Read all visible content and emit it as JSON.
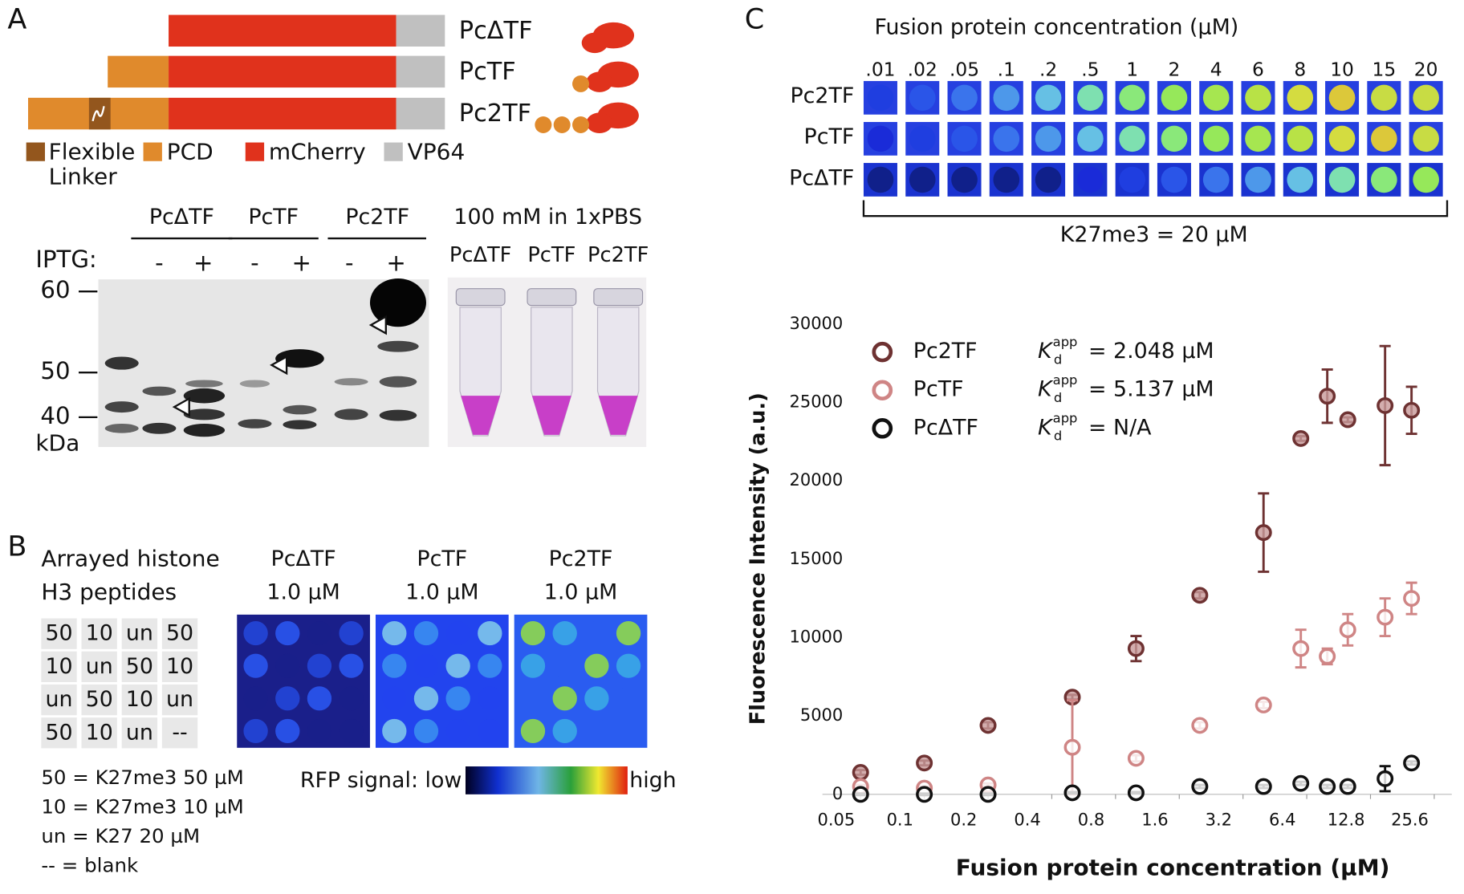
{
  "panel_a": {
    "label": "A",
    "constructs": [
      "PcΔTF",
      "PcTF",
      "Pc2TF"
    ],
    "legend": [
      {
        "lines": [
          "Flexible",
          "Linker"
        ],
        "color": "#93561d"
      },
      {
        "lines": [
          "PCD"
        ],
        "color": "#e08a2c"
      },
      {
        "lines": [
          "mCherry"
        ],
        "color": "#e0321c"
      },
      {
        "lines": [
          "VP64"
        ],
        "color": "#c0c0c0"
      }
    ],
    "gel": {
      "headers": [
        "PcΔTF",
        "PcTF",
        "Pc2TF"
      ],
      "iptg": "IPTG:",
      "signs": [
        "-",
        "+",
        "-",
        "+",
        "-",
        "+"
      ],
      "markers": [
        "60",
        "50",
        "40"
      ],
      "unit": "kDa"
    },
    "tubes": {
      "title": "100 mM in 1xPBS",
      "labels": [
        "PcΔTF",
        "PcTF",
        "Pc2TF"
      ]
    }
  },
  "panel_b": {
    "label": "B",
    "title_lines": [
      "Arrayed histone",
      "H3 peptides"
    ],
    "grid": [
      [
        "50",
        "10",
        "un",
        "50"
      ],
      [
        "10",
        "un",
        "50",
        "10"
      ],
      [
        "un",
        "50",
        "10",
        "un"
      ],
      [
        "50",
        "10",
        "un",
        "--"
      ]
    ],
    "key": [
      "50 = K27me3 50 µM",
      "10 = K27me3 10 µM",
      "un = K27 20 µM",
      "--   = blank"
    ],
    "images": [
      {
        "name": "PcΔTF",
        "conc": "1.0 µM"
      },
      {
        "name": "PcTF",
        "conc": "1.0 µM"
      },
      {
        "name": "Pc2TF",
        "conc": "1.0 µM"
      }
    ],
    "colorbar": {
      "low": "RFP signal: low",
      "high": "high"
    }
  },
  "panel_c": {
    "label": "C",
    "array_title": "Fusion protein concentration (µM)",
    "columns": [
      ".01",
      ".02",
      ".05",
      ".1",
      ".2",
      ".5",
      "1",
      "2",
      "4",
      "6",
      "8",
      "10",
      "15",
      "20"
    ],
    "rows": [
      "Pc2TF",
      "PcTF",
      "PcΔTF"
    ],
    "bracket_label": "K27me3 = 20 µM"
  },
  "chart_data": {
    "type": "scatter",
    "x_label": "Fusion protein concentration (µM)",
    "y_label": "Fluorescence Intensity (a.u.)",
    "x": [
      0.05,
      0.1,
      0.2,
      0.5,
      1,
      2,
      4,
      6,
      8,
      10,
      15,
      20
    ],
    "x_scale": "log2",
    "xlim": [
      0.033,
      31
    ],
    "xticks": [
      0.05,
      0.1,
      0.2,
      0.4,
      0.8,
      1.6,
      3.2,
      6.4,
      12.8,
      25.6
    ],
    "ylim": [
      0,
      30000
    ],
    "yticks": [
      0,
      5000,
      10000,
      15000,
      20000,
      25000,
      30000
    ],
    "kd_symbol": "K",
    "kd_sub": "d",
    "kd_sup": "app",
    "legend_position": "upper-left",
    "series": [
      {
        "name": "Pc2TF",
        "color": "#6e3232",
        "fill": "#c89a9a",
        "kd": "= 2.048 µM",
        "values": [
          1400,
          2000,
          4400,
          6200,
          9300,
          12700,
          16700,
          22700,
          25400,
          23900,
          24800,
          24500
        ],
        "errors": [
          150,
          150,
          200,
          150,
          800,
          200,
          2500,
          150,
          1700,
          150,
          3800,
          1500
        ]
      },
      {
        "name": "PcTF",
        "color": "#cf8585",
        "fill": "#ffffff",
        "kd": "= 5.137 µM",
        "values": [
          500,
          400,
          600,
          3000,
          2300,
          4400,
          5700,
          9300,
          8800,
          10500,
          11300,
          12500
        ],
        "errors": [
          100,
          100,
          100,
          3000,
          200,
          200,
          200,
          1200,
          500,
          1000,
          1200,
          1000
        ]
      },
      {
        "name": "PcΔTF",
        "color": "#111111",
        "fill": "#ffffff",
        "kd": "= N/A",
        "values": [
          0,
          0,
          0,
          100,
          100,
          500,
          500,
          700,
          500,
          500,
          1000,
          2000
        ],
        "errors": [
          50,
          50,
          50,
          50,
          50,
          100,
          100,
          100,
          100,
          100,
          800,
          100
        ]
      }
    ]
  }
}
